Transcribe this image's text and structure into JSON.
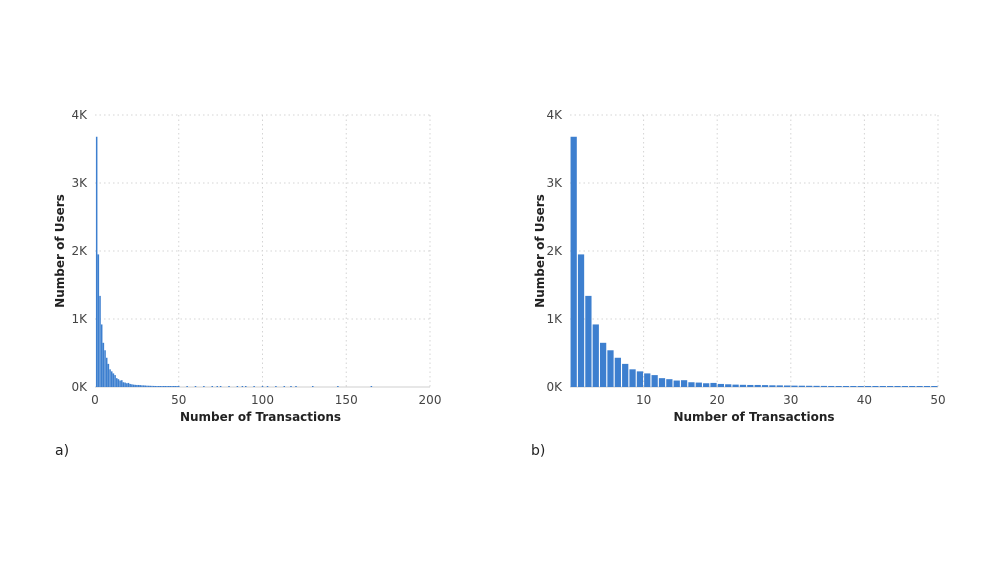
{
  "chart_data": [
    {
      "type": "bar",
      "panel_label": "a)",
      "xlabel": "Number of Transactions",
      "ylabel": "Number of Users",
      "xlim": [
        0,
        200
      ],
      "ylim": [
        0,
        4000
      ],
      "xticks": [
        "0",
        "50",
        "100",
        "150",
        "200"
      ],
      "yticks": [
        "0K",
        "1K",
        "2K",
        "3K",
        "4K"
      ],
      "grid": true,
      "x": [
        1,
        2,
        3,
        4,
        5,
        6,
        7,
        8,
        9,
        10,
        11,
        12,
        13,
        14,
        15,
        16,
        17,
        18,
        19,
        20,
        21,
        22,
        23,
        24,
        25,
        26,
        27,
        28,
        29,
        30,
        31,
        32,
        33,
        34,
        35,
        36,
        37,
        38,
        39,
        40,
        41,
        42,
        43,
        44,
        45,
        46,
        47,
        48,
        49,
        50,
        55,
        60,
        65,
        70,
        73,
        75,
        80,
        85,
        88,
        90,
        95,
        100,
        103,
        108,
        113,
        117,
        120,
        130,
        145,
        165
      ],
      "values": [
        3680,
        1950,
        1340,
        920,
        650,
        540,
        430,
        340,
        260,
        230,
        200,
        175,
        130,
        115,
        95,
        100,
        70,
        65,
        55,
        60,
        45,
        40,
        35,
        32,
        30,
        30,
        28,
        25,
        24,
        22,
        20,
        19,
        18,
        17,
        16,
        15,
        14,
        14,
        13,
        12,
        12,
        11,
        11,
        10,
        10,
        9,
        9,
        8,
        8,
        8,
        7,
        6,
        6,
        5,
        8,
        5,
        4,
        4,
        6,
        4,
        3,
        3,
        6,
        3,
        5,
        6,
        3,
        2,
        4,
        5
      ]
    },
    {
      "type": "bar",
      "panel_label": "b)",
      "xlabel": "Number of Transactions",
      "ylabel": "Number of Users",
      "xlim": [
        0,
        50
      ],
      "ylim": [
        0,
        4000
      ],
      "xticks": [
        "10",
        "20",
        "30",
        "40",
        "50"
      ],
      "yticks": [
        "0K",
        "1K",
        "2K",
        "3K",
        "4K"
      ],
      "grid": true,
      "x": [
        1,
        2,
        3,
        4,
        5,
        6,
        7,
        8,
        9,
        10,
        11,
        12,
        13,
        14,
        15,
        16,
        17,
        18,
        19,
        20,
        21,
        22,
        23,
        24,
        25,
        26,
        27,
        28,
        29,
        30,
        31,
        32,
        33,
        34,
        35,
        36,
        37,
        38,
        39,
        40,
        41,
        42,
        43,
        44,
        45,
        46,
        47,
        48,
        49,
        50
      ],
      "values": [
        3680,
        1950,
        1340,
        920,
        650,
        540,
        430,
        340,
        260,
        230,
        200,
        175,
        130,
        115,
        95,
        100,
        70,
        65,
        55,
        60,
        45,
        40,
        35,
        32,
        30,
        30,
        28,
        25,
        24,
        22,
        20,
        19,
        18,
        17,
        16,
        15,
        14,
        14,
        13,
        12,
        12,
        11,
        11,
        10,
        10,
        9,
        9,
        8,
        8,
        8
      ]
    }
  ]
}
